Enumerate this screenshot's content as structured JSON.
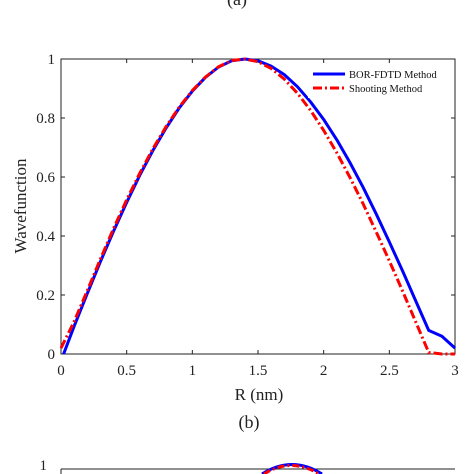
{
  "panel_labels": {
    "top": "(a)",
    "middle": "(b)",
    "bottom_partial_tick": "1"
  },
  "chart_data": {
    "type": "line",
    "title": "",
    "xlabel": "R (nm)",
    "ylabel": "Wavefunction",
    "xlim": [
      0,
      3
    ],
    "ylim": [
      0,
      1
    ],
    "xticks": [
      0,
      0.5,
      1,
      1.5,
      2,
      2.5,
      3
    ],
    "xtick_labels": [
      "0",
      "0.5",
      "1",
      "1.5",
      "2",
      "2.5",
      "3"
    ],
    "yticks": [
      0,
      0.2,
      0.4,
      0.6,
      0.8,
      1
    ],
    "ytick_labels": [
      "0",
      "0.2",
      "0.4",
      "0.6",
      "0.8",
      "1"
    ],
    "grid": false,
    "legend_position": "top-right",
    "series": [
      {
        "name": "BOR-FDTD Method",
        "color": "#0000ff",
        "style": "solid",
        "x": [
          0.02,
          0.1,
          0.2,
          0.3,
          0.4,
          0.5,
          0.6,
          0.7,
          0.8,
          0.9,
          1.0,
          1.1,
          1.2,
          1.3,
          1.4,
          1.5,
          1.6,
          1.7,
          1.8,
          1.9,
          2.0,
          2.1,
          2.2,
          2.3,
          2.4,
          2.5,
          2.6,
          2.7,
          2.8,
          2.9,
          3.0
        ],
        "y": [
          0.0,
          0.094,
          0.205,
          0.313,
          0.416,
          0.514,
          0.606,
          0.69,
          0.766,
          0.834,
          0.891,
          0.938,
          0.973,
          0.994,
          1.0,
          0.994,
          0.976,
          0.947,
          0.906,
          0.855,
          0.795,
          0.726,
          0.649,
          0.565,
          0.475,
          0.38,
          0.282,
          0.181,
          0.08,
          0.06,
          0.02
        ]
      },
      {
        "name": "Shooting Method",
        "color": "#ff0000",
        "style": "dash-dot",
        "x": [
          0.0,
          0.1,
          0.2,
          0.3,
          0.4,
          0.5,
          0.6,
          0.7,
          0.8,
          0.9,
          1.0,
          1.1,
          1.2,
          1.3,
          1.4,
          1.5,
          1.6,
          1.7,
          1.8,
          1.9,
          2.0,
          2.1,
          2.2,
          2.3,
          2.4,
          2.5,
          2.6,
          2.7,
          2.8,
          2.9,
          3.0
        ],
        "y": [
          0.02,
          0.11,
          0.215,
          0.322,
          0.425,
          0.523,
          0.613,
          0.696,
          0.771,
          0.837,
          0.893,
          0.939,
          0.974,
          0.995,
          1.0,
          0.991,
          0.968,
          0.932,
          0.884,
          0.826,
          0.758,
          0.682,
          0.599,
          0.509,
          0.414,
          0.316,
          0.214,
          0.11,
          0.005,
          0.0,
          0.0
        ]
      }
    ]
  }
}
